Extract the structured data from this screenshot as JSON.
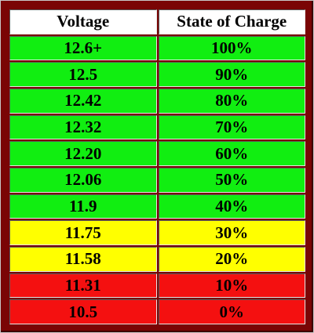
{
  "table": {
    "header": [
      "Voltage",
      "State of Charge"
    ],
    "rows": [
      [
        "12.6+",
        "100%"
      ],
      [
        "12.5",
        "90%"
      ],
      [
        "12.42",
        "80%"
      ],
      [
        "12.32",
        "70%"
      ],
      [
        "12.20",
        "60%"
      ],
      [
        "12.06",
        "50%"
      ],
      [
        "11.9",
        "40%"
      ],
      [
        "11.75",
        "30%"
      ],
      [
        "11.58",
        "20%"
      ],
      [
        "11.31",
        "10%"
      ],
      [
        "10.5",
        "0%"
      ]
    ]
  }
}
